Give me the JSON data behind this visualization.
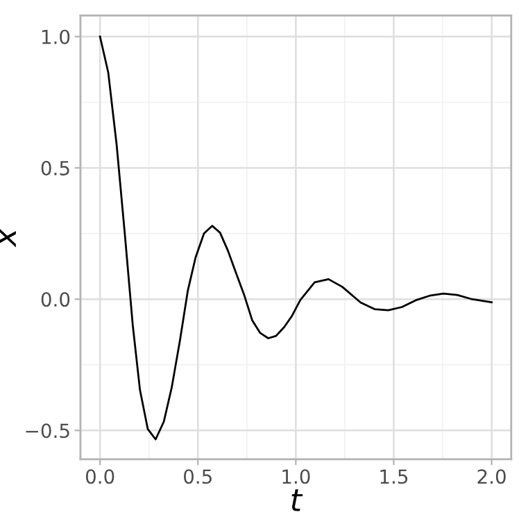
{
  "chart_data": {
    "type": "line",
    "xlabel": "t",
    "ylabel": "x",
    "x": [
      0,
      0.042,
      0.085,
      0.127,
      0.167,
      0.204,
      0.244,
      0.284,
      0.326,
      0.366,
      0.408,
      0.448,
      0.488,
      0.531,
      0.573,
      0.613,
      0.653,
      0.695,
      0.737,
      0.777,
      0.817,
      0.859,
      0.899,
      0.941,
      0.981,
      1.023,
      1.096,
      1.167,
      1.237,
      1.331,
      1.402,
      1.472,
      1.542,
      1.613,
      1.683,
      1.754,
      1.824,
      1.894,
      2.0
    ],
    "series": [
      {
        "color": "#000000",
        "values": [
          1.0,
          0.863,
          0.587,
          0.245,
          -0.098,
          -0.346,
          -0.495,
          -0.534,
          -0.466,
          -0.337,
          -0.158,
          0.031,
          0.159,
          0.25,
          0.279,
          0.253,
          0.185,
          0.099,
          0.014,
          -0.08,
          -0.128,
          -0.149,
          -0.14,
          -0.106,
          -0.063,
          -0.003,
          0.064,
          0.076,
          0.047,
          -0.013,
          -0.038,
          -0.042,
          -0.03,
          -0.004,
          0.013,
          0.021,
          0.016,
          0.001,
          -0.012
        ]
      }
    ],
    "xlim": [
      -0.1,
      2.1
    ],
    "ylim": [
      -0.61,
      1.08
    ],
    "xticks": [
      "0.0",
      0.5,
      "1.0",
      1.5,
      "2.0"
    ],
    "yticks": [
      {
        "value": -0.5,
        "label": "−0.5"
      },
      {
        "value": 0,
        "label": "0.0"
      },
      0.5,
      {
        "value": 1,
        "label": "1.0"
      }
    ],
    "grid": true,
    "marker": "none",
    "line_style": "solid"
  }
}
